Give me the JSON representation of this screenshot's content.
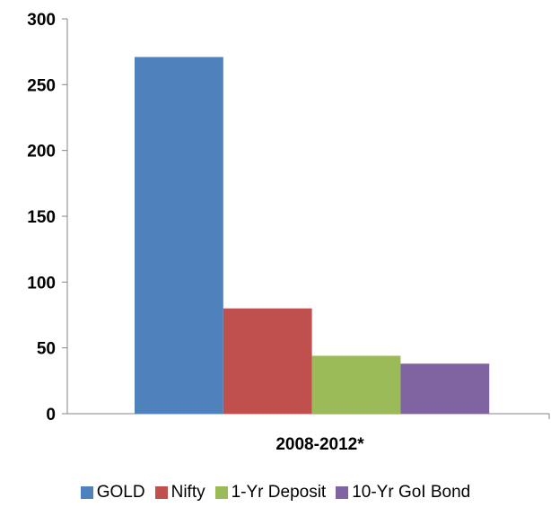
{
  "chart_data": {
    "type": "bar",
    "categories": [
      "2008-2012*"
    ],
    "series": [
      {
        "name": "GOLD",
        "values": [
          271
        ],
        "color": "#4F81BD"
      },
      {
        "name": "Nifty",
        "values": [
          80
        ],
        "color": "#C0504D"
      },
      {
        "name": "1-Yr Deposit",
        "values": [
          44
        ],
        "color": "#9BBB59"
      },
      {
        "name": "10-Yr GoI Bond",
        "values": [
          38
        ],
        "color": "#8064A2"
      }
    ],
    "yticks": [
      0,
      50,
      100,
      150,
      200,
      250,
      300
    ],
    "ylim": [
      0,
      300
    ],
    "title": "",
    "xlabel": "",
    "ylabel": "",
    "grid": false,
    "legend_position": "bottom"
  }
}
